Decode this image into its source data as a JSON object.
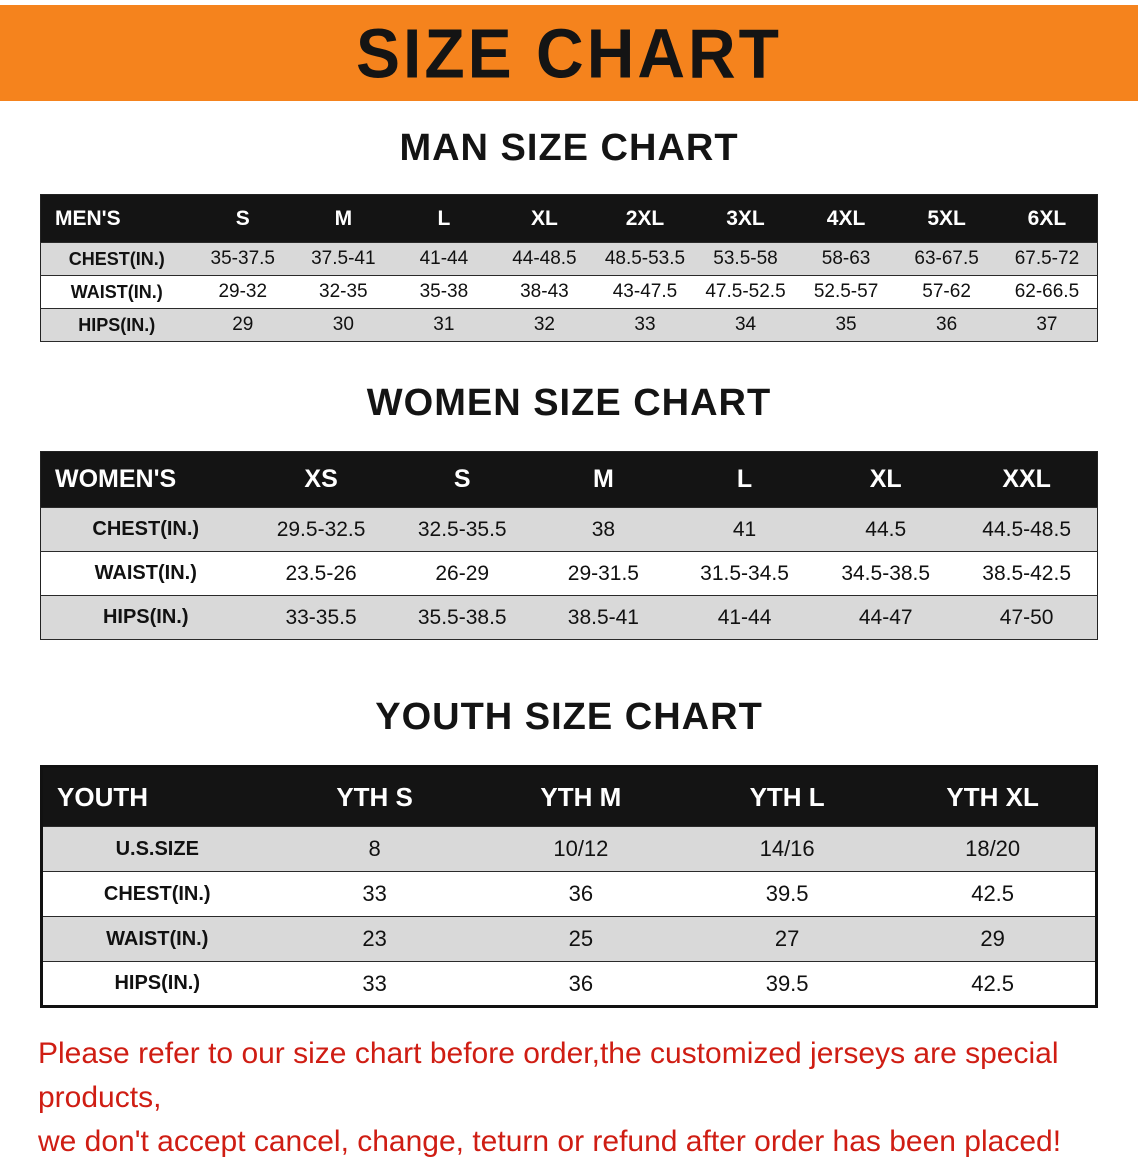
{
  "banner": {
    "title": "SIZE CHART"
  },
  "men": {
    "heading": "MAN SIZE CHART",
    "table": {
      "label": "MEN'S",
      "columns": [
        "S",
        "M",
        "L",
        "XL",
        "2XL",
        "3XL",
        "4XL",
        "5XL",
        "6XL"
      ],
      "rows": [
        {
          "label": "CHEST(IN.)",
          "values": [
            "35-37.5",
            "37.5-41",
            "41-44",
            "44-48.5",
            "48.5-53.5",
            "53.5-58",
            "58-63",
            "63-67.5",
            "67.5-72"
          ]
        },
        {
          "label": "WAIST(IN.)",
          "values": [
            "29-32",
            "32-35",
            "35-38",
            "38-43",
            "43-47.5",
            "47.5-52.5",
            "52.5-57",
            "57-62",
            "62-66.5"
          ]
        },
        {
          "label": "HIPS(IN.)",
          "values": [
            "29",
            "30",
            "31",
            "32",
            "33",
            "34",
            "35",
            "36",
            "37"
          ]
        }
      ]
    }
  },
  "women": {
    "heading": "WOMEN SIZE CHART",
    "table": {
      "label": "WOMEN'S",
      "columns": [
        "XS",
        "S",
        "M",
        "L",
        "XL",
        "XXL"
      ],
      "rows": [
        {
          "label": "CHEST(IN.)",
          "values": [
            "29.5-32.5",
            "32.5-35.5",
            "38",
            "41",
            "44.5",
            "44.5-48.5"
          ]
        },
        {
          "label": "WAIST(IN.)",
          "values": [
            "23.5-26",
            "26-29",
            "29-31.5",
            "31.5-34.5",
            "34.5-38.5",
            "38.5-42.5"
          ]
        },
        {
          "label": "HIPS(IN.)",
          "values": [
            "33-35.5",
            "35.5-38.5",
            "38.5-41",
            "41-44",
            "44-47",
            "47-50"
          ]
        }
      ]
    }
  },
  "youth": {
    "heading": "YOUTH SIZE CHART",
    "table": {
      "label": "YOUTH",
      "columns": [
        "YTH S",
        "YTH M",
        "YTH L",
        "YTH XL"
      ],
      "rows": [
        {
          "label": "U.S.SIZE",
          "values": [
            "8",
            "10/12",
            "14/16",
            "18/20"
          ]
        },
        {
          "label": "CHEST(IN.)",
          "values": [
            "33",
            "36",
            "39.5",
            "42.5"
          ]
        },
        {
          "label": "WAIST(IN.)",
          "values": [
            "23",
            "25",
            "27",
            "29"
          ]
        },
        {
          "label": "HIPS(IN.)",
          "values": [
            "33",
            "36",
            "39.5",
            "42.5"
          ]
        }
      ]
    }
  },
  "footer": {
    "line1": "Please refer to our size chart before order,the customized jerseys are special products,",
    "line2": "we don't accept cancel, change, teturn or refund after order has been placed!"
  },
  "colors": {
    "banner_bg": "#F5831D",
    "table_header_bg": "#141414",
    "row_alt_bg": "#D9D9D9",
    "footer_text": "#CF1D13"
  }
}
